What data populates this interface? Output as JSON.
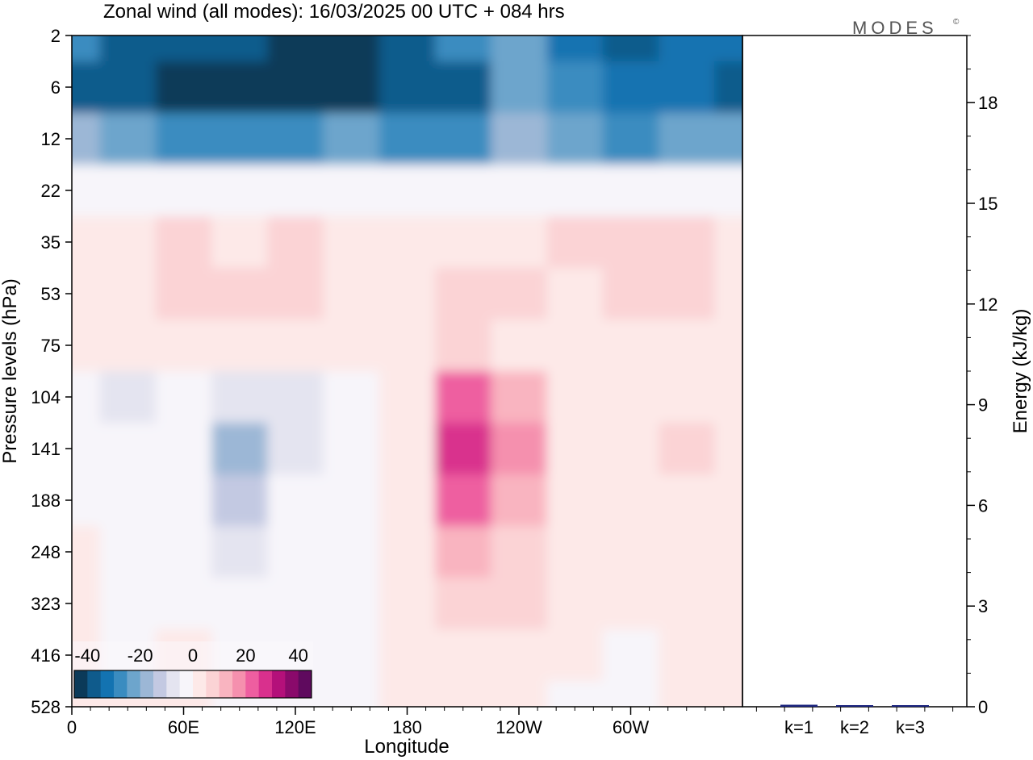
{
  "chart_data": {
    "type": "heatmap",
    "title": "Zonal wind (all modes):  16/03/2025  00 UTC  + 084 hrs",
    "logo": "MODES",
    "logo_mark": "©",
    "xlabel": "Longitude",
    "ylabel": "Pressure levels (hPa)",
    "x_ticks": [
      "0",
      "60E",
      "120E",
      "180",
      "120W",
      "60W"
    ],
    "y_ticks": [
      "2",
      "6",
      "12",
      "22",
      "35",
      "53",
      "75",
      "104",
      "141",
      "188",
      "248",
      "323",
      "416",
      "528"
    ],
    "colorbar": {
      "ticks": [
        "-40",
        "-20",
        "0",
        "20",
        "40"
      ],
      "range": [
        -45,
        45
      ],
      "step": 5,
      "colors": [
        "#0b3a59",
        "#0f5b8c",
        "#1373b1",
        "#3a8cc0",
        "#6da5cc",
        "#9cb7d6",
        "#c3c9e2",
        "#e4e4f0",
        "#f7f5fa",
        "#fde9e8",
        "#fbd3d5",
        "#f9b4c0",
        "#f590ae",
        "#ee5ea0",
        "#d9308d",
        "#b4107a",
        "#8a0a6b",
        "#5f0a5e"
      ]
    },
    "grid": {
      "pressure_levels": [
        "2",
        "6",
        "12",
        "22",
        "35",
        "53",
        "75",
        "104",
        "141",
        "188",
        "248",
        "323",
        "416",
        "528"
      ],
      "longitudes": [
        0,
        30,
        60,
        90,
        120,
        150,
        180,
        210,
        240,
        270,
        300,
        330,
        360
      ],
      "zonal_wind": [
        [
          -30,
          -38,
          -40,
          -40,
          -42,
          -42,
          -38,
          -28,
          -22,
          -32,
          -36,
          -34,
          -32
        ],
        [
          -36,
          -40,
          -45,
          -44,
          -44,
          -45,
          -40,
          -36,
          -24,
          -30,
          -35,
          -34,
          -36
        ],
        [
          -20,
          -24,
          -28,
          -28,
          -27,
          -24,
          -26,
          -28,
          -18,
          -22,
          -26,
          -24,
          -22
        ],
        [
          -4,
          -3,
          -3,
          -4,
          -5,
          -3,
          -4,
          -4,
          -5,
          -4,
          -3,
          -4,
          -5
        ],
        [
          2,
          4,
          5,
          4,
          5,
          4,
          3,
          3,
          4,
          5,
          5,
          5,
          4
        ],
        [
          2,
          3,
          6,
          8,
          5,
          3,
          3,
          5,
          5,
          3,
          5,
          5,
          4
        ],
        [
          1,
          0,
          2,
          1,
          0,
          0,
          1,
          5,
          3,
          1,
          2,
          4,
          2
        ],
        [
          -2,
          -6,
          -4,
          -8,
          -6,
          -3,
          2,
          20,
          10,
          2,
          1,
          3,
          0
        ],
        [
          -2,
          -3,
          -5,
          -18,
          -6,
          -2,
          3,
          28,
          18,
          3,
          1,
          5,
          0
        ],
        [
          -1,
          -2,
          -4,
          -12,
          -5,
          -2,
          4,
          20,
          14,
          2,
          1,
          4,
          1
        ],
        [
          1,
          -2,
          -3,
          -8,
          -4,
          -2,
          2,
          12,
          8,
          2,
          1,
          3,
          0
        ],
        [
          1,
          -1,
          -2,
          -4,
          -3,
          -4,
          1,
          6,
          5,
          1,
          0,
          1,
          0
        ],
        [
          0,
          -1,
          0,
          -1,
          -2,
          -3,
          1,
          4,
          3,
          0,
          -1,
          0,
          0
        ],
        [
          0,
          0,
          0,
          -1,
          -2,
          -2,
          0,
          2,
          1,
          -1,
          -1,
          0,
          0
        ]
      ]
    },
    "energy_panel": {
      "ylabel": "Energy (kJ/kg)",
      "y_ticks": [
        "0",
        "3",
        "6",
        "9",
        "12",
        "15",
        "18"
      ],
      "ylim": [
        0,
        20
      ],
      "categories": [
        "k=1",
        "k=2",
        "k=3"
      ],
      "values": [
        0.06,
        0.03,
        0.04
      ],
      "bar_color": "#1a237e"
    }
  }
}
